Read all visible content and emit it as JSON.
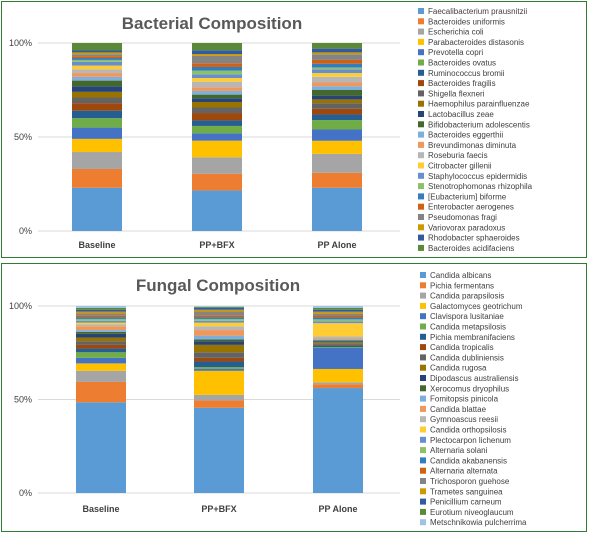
{
  "charts": [
    {
      "id": "bacterial",
      "type": "stacked-bar-100",
      "title": "Bacterial Composition",
      "categories": [
        "Baseline",
        "PP+BFX",
        "PP Alone"
      ],
      "yticks": [
        "0%",
        "50%",
        "100%"
      ],
      "legend_position": "right",
      "series": [
        {
          "name": "Faecalibacterium prausnitzii",
          "color": "#5b9bd5",
          "values": [
            23,
            22,
            23
          ]
        },
        {
          "name": "Bacteroides uniformis",
          "color": "#ed7d31",
          "values": [
            10,
            9,
            8
          ]
        },
        {
          "name": "Escherichia coli",
          "color": "#a5a5a5",
          "values": [
            9,
            9,
            10
          ]
        },
        {
          "name": "Parabacteroides distasonis",
          "color": "#ffc000",
          "values": [
            7,
            9,
            7
          ]
        },
        {
          "name": "Prevotella copri",
          "color": "#4472c4",
          "values": [
            6,
            4,
            6
          ]
        },
        {
          "name": "Bacteroides ovatus",
          "color": "#70ad47",
          "values": [
            5,
            4,
            5
          ]
        },
        {
          "name": "Ruminococcus bromii",
          "color": "#255e91",
          "values": [
            4,
            3,
            3
          ]
        },
        {
          "name": "Bacteroides fragilis",
          "color": "#9e480e",
          "values": [
            4,
            4,
            3
          ]
        },
        {
          "name": "Shigella flexneri",
          "color": "#636363",
          "values": [
            3,
            3,
            3
          ]
        },
        {
          "name": "Haemophilus parainfluenzae",
          "color": "#997300",
          "values": [
            3,
            3,
            2
          ]
        },
        {
          "name": "Lactobacillus zeae",
          "color": "#264478",
          "values": [
            3,
            2,
            2
          ]
        },
        {
          "name": "Bifidobacterium adolescentis",
          "color": "#43682b",
          "values": [
            3,
            2,
            3
          ]
        },
        {
          "name": "Bacteroides eggerthii",
          "color": "#7cafdd",
          "values": [
            2,
            2,
            2
          ]
        },
        {
          "name": "Brevundimonas diminuta",
          "color": "#f1975a",
          "values": [
            2,
            2,
            2
          ]
        },
        {
          "name": "Roseburia faecis",
          "color": "#b7b7b7",
          "values": [
            2,
            3,
            3
          ]
        },
        {
          "name": "Citrobacter gillenii",
          "color": "#ffcd33",
          "values": [
            2,
            2,
            2
          ]
        },
        {
          "name": "Staphylococcus epidermidis",
          "color": "#698ed0",
          "values": [
            2,
            2,
            2
          ]
        },
        {
          "name": "Stenotrophomonas rhizophila",
          "color": "#8cc168",
          "values": [
            1,
            2,
            1
          ]
        },
        {
          "name": "[Eubacterium] biforme",
          "color": "#327dc2",
          "values": [
            1,
            2,
            2
          ]
        },
        {
          "name": "Enterobacter aerogenes",
          "color": "#d26012",
          "values": [
            1,
            2,
            2
          ]
        },
        {
          "name": "Pseudomonas fragi",
          "color": "#848484",
          "values": [
            1,
            4,
            3
          ]
        },
        {
          "name": "Variovorax paradoxus",
          "color": "#cc9a00",
          "values": [
            1,
            1,
            1
          ]
        },
        {
          "name": "Rhodobacter sphaeroides",
          "color": "#335aa1",
          "values": [
            1,
            2,
            2
          ]
        },
        {
          "name": "Bacteroides acidifaciens",
          "color": "#5a8a39",
          "values": [
            4,
            4,
            3
          ]
        }
      ]
    },
    {
      "id": "fungal",
      "type": "stacked-bar-100",
      "title": "Fungal Composition",
      "categories": [
        "Baseline",
        "PP+BFX",
        "PP Alone"
      ],
      "yticks": [
        "0%",
        "50%",
        "100%"
      ],
      "legend_position": "right",
      "series": [
        {
          "name": "Candida albicans",
          "color": "#5b9bd5",
          "values": [
            49,
            46,
            55
          ]
        },
        {
          "name": "Pichia fermentans",
          "color": "#ed7d31",
          "values": [
            11,
            4,
            2
          ]
        },
        {
          "name": "Candida parapsilosis",
          "color": "#a5a5a5",
          "values": [
            6,
            3,
            1
          ]
        },
        {
          "name": "Galactomyces geotrichum",
          "color": "#ffc000",
          "values": [
            4,
            13,
            7
          ]
        },
        {
          "name": "Clavispora lusitaniae",
          "color": "#4472c4",
          "values": [
            3,
            1,
            11
          ]
        },
        {
          "name": "Candida metapsilosis",
          "color": "#70ad47",
          "values": [
            3,
            1,
            0.5
          ]
        },
        {
          "name": "Pichia membranifaciens",
          "color": "#255e91",
          "values": [
            2,
            3,
            1
          ]
        },
        {
          "name": "Candida tropicalis",
          "color": "#9e480e",
          "values": [
            2,
            2,
            0.5
          ]
        },
        {
          "name": "Candida dubliniensis",
          "color": "#636363",
          "values": [
            2,
            3,
            0.5
          ]
        },
        {
          "name": "Candida rugosa",
          "color": "#997300",
          "values": [
            2,
            4,
            0.5
          ]
        },
        {
          "name": "Dipodascus australiensis",
          "color": "#264478",
          "values": [
            2,
            2,
            0.5
          ]
        },
        {
          "name": "Xerocomus dryophilus",
          "color": "#43682b",
          "values": [
            1,
            1,
            0.5
          ]
        },
        {
          "name": "Fomitopsis pinicola",
          "color": "#7cafdd",
          "values": [
            1,
            2,
            0.5
          ]
        },
        {
          "name": "Candida blattae",
          "color": "#f1975a",
          "values": [
            2,
            3,
            0.5
          ]
        },
        {
          "name": "Gymnoascus reesii",
          "color": "#b7b7b7",
          "values": [
            1,
            2,
            1
          ]
        },
        {
          "name": "Candida orthopsilosis",
          "color": "#ffcd33",
          "values": [
            1,
            2,
            7
          ]
        },
        {
          "name": "Plectocarpon lichenum",
          "color": "#698ed0",
          "values": [
            1,
            1,
            1
          ]
        },
        {
          "name": "Alternaria solani",
          "color": "#8cc168",
          "values": [
            1,
            1,
            1
          ]
        },
        {
          "name": "Candida akabanensis",
          "color": "#327dc2",
          "values": [
            1,
            1,
            1
          ]
        },
        {
          "name": "Alternaria alternata",
          "color": "#d26012",
          "values": [
            1,
            1,
            1
          ]
        },
        {
          "name": "Trichosporon guehose",
          "color": "#848484",
          "values": [
            1,
            2,
            1
          ]
        },
        {
          "name": "Trametes sanguinea",
          "color": "#cc9a00",
          "values": [
            1,
            1,
            1
          ]
        },
        {
          "name": "Penicillium carneum",
          "color": "#335aa1",
          "values": [
            1,
            1,
            1
          ]
        },
        {
          "name": "Eurotium niveoglaucum",
          "color": "#5a8a39",
          "values": [
            1,
            0.5,
            1
          ]
        },
        {
          "name": "Metschnikowia pulcherrima",
          "color": "#9dc3e6",
          "values": [
            1,
            0.5,
            1
          ]
        }
      ]
    }
  ]
}
